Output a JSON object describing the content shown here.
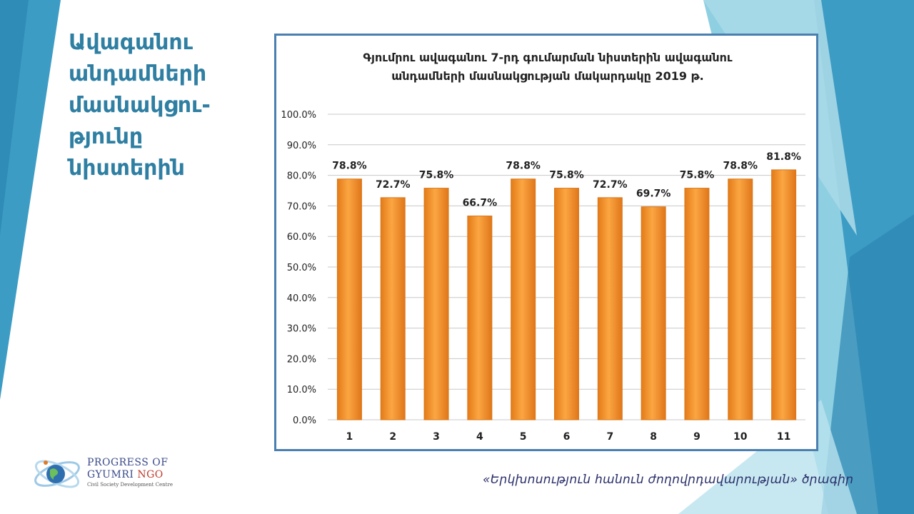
{
  "slide": {
    "title_lines": [
      "Ավագանու",
      "անդամների",
      "մասնակցու-",
      "թյունը",
      "նիստերին"
    ],
    "footer": "«Երկխոսություն հանուն ժողովրդավարության» ծրագիր"
  },
  "logo": {
    "line1": "PROGRESS OF",
    "line2_a": "GYUMRI ",
    "line2_b": "NGO",
    "line3": "Civil Society Development Centre"
  },
  "colors": {
    "accent": "#2f7fa3",
    "bar_fill": "#f7962a",
    "bar_edge": "#d9781a",
    "frame": "#4a7fb0"
  },
  "chart_data": {
    "type": "bar",
    "title": "Գյումրու ավագանու 7-րդ գումարման նիստերին ավագանու անդամների մասնակցության մակարդակը 2019 թ.",
    "title_lines": [
      "Գյումրու ավագանու 7-րդ գումարման նիստերին ավագանու",
      "անդամների մասնակցության մակարդակը 2019 թ."
    ],
    "categories": [
      "1",
      "2",
      "3",
      "4",
      "5",
      "6",
      "7",
      "8",
      "9",
      "10",
      "11"
    ],
    "values": [
      78.8,
      72.7,
      75.8,
      66.7,
      78.8,
      75.8,
      72.7,
      69.7,
      75.8,
      78.8,
      81.8
    ],
    "value_labels": [
      "78.8%",
      "72.7%",
      "75.8%",
      "66.7%",
      "78.8%",
      "75.8%",
      "72.7%",
      "69.7%",
      "75.8%",
      "78.8%",
      "81.8%"
    ],
    "y_ticks": [
      "0.0%",
      "10.0%",
      "20.0%",
      "30.0%",
      "40.0%",
      "50.0%",
      "60.0%",
      "70.0%",
      "80.0%",
      "90.0%",
      "100.0%"
    ],
    "ylim": [
      0,
      100
    ],
    "y_step": 10,
    "xlabel": "",
    "ylabel": "",
    "grid": true,
    "legend": "none"
  }
}
